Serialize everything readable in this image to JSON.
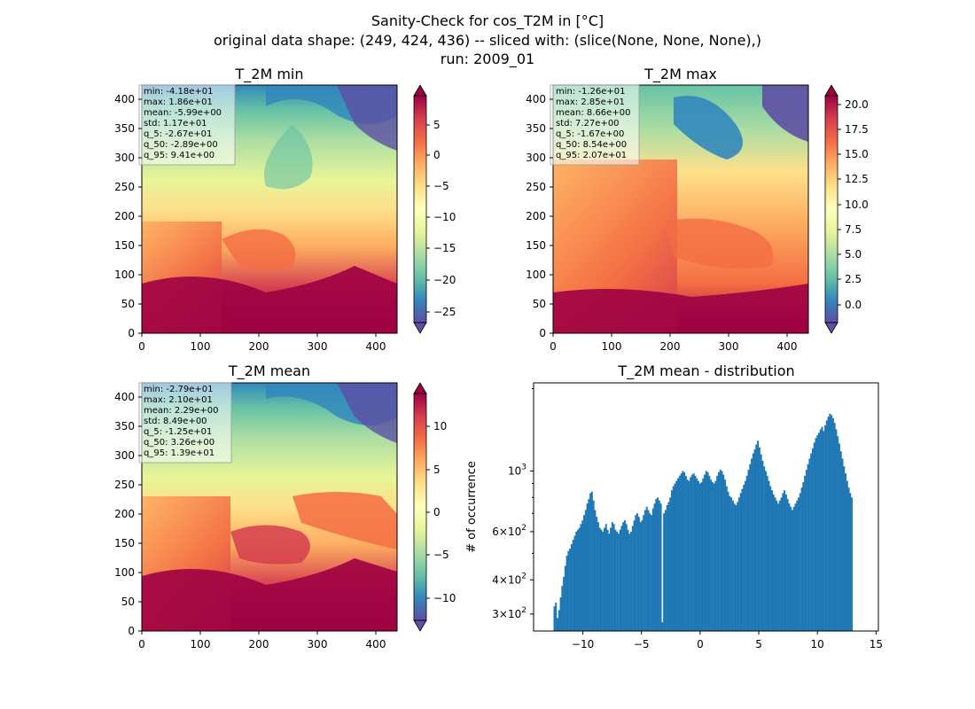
{
  "figure": {
    "title_lines": [
      "Sanity-Check for cos_T2M in [°C]",
      "original data shape: (249, 424, 436) -- sliced with: (slice(None, None, None),)",
      "run: 2009_01"
    ]
  },
  "panels": [
    {
      "title": "T_2M min",
      "xticks": [
        "0",
        "100",
        "200",
        "300",
        "400"
      ],
      "yticks": [
        "0",
        "50",
        "100",
        "150",
        "200",
        "250",
        "300",
        "350",
        "400"
      ],
      "stats": [
        "min: -4.18e+01",
        "max: 1.86e+01",
        "mean: -5.99e+00",
        "std: 1.17e+01",
        "q_5: -2.67e+01",
        "q_50: -2.89e+00",
        "q_95: 9.41e+00"
      ],
      "colorbar": {
        "colormap": "Spectral_r",
        "range": [
          -27.5,
          9.4
        ],
        "ticks": [
          "5",
          "0",
          "−5",
          "−10",
          "−15",
          "−20",
          "−25"
        ],
        "extend": "both"
      }
    },
    {
      "title": "T_2M max",
      "xticks": [
        "0",
        "100",
        "200",
        "300",
        "400"
      ],
      "yticks": [
        "0",
        "50",
        "100",
        "150",
        "200",
        "250",
        "300",
        "350",
        "400"
      ],
      "stats": [
        "min: -1.26e+01",
        "max: 2.85e+01",
        "mean: 8.66e+00",
        "std: 7.27e+00",
        "q_5: -1.67e+00",
        "q_50: 8.54e+00",
        "q_95: 2.07e+01"
      ],
      "colorbar": {
        "colormap": "Spectral_r",
        "range": [
          -1.7,
          20.7
        ],
        "ticks": [
          "20.0",
          "17.5",
          "15.0",
          "12.5",
          "10.0",
          "7.5",
          "5.0",
          "2.5",
          "0.0"
        ],
        "extend": "both"
      }
    },
    {
      "title": "T_2M mean",
      "xticks": [
        "0",
        "100",
        "200",
        "300",
        "400"
      ],
      "yticks": [
        "0",
        "50",
        "100",
        "150",
        "200",
        "250",
        "300",
        "350",
        "400"
      ],
      "stats": [
        "min: -2.79e+01",
        "max: 2.10e+01",
        "mean: 2.29e+00",
        "std: 8.49e+00",
        "q_5: -1.25e+01",
        "q_50: 3.26e+00",
        "q_95: 1.39e+01"
      ],
      "colorbar": {
        "colormap": "Spectral_r",
        "range": [
          -12.5,
          13.9
        ],
        "ticks": [
          "10",
          "5",
          "0",
          "−5",
          "−10"
        ],
        "extend": "both"
      }
    }
  ],
  "colors": {
    "bar": "#1f77b4",
    "cmap": [
      "#5e4fa2",
      "#3288bd",
      "#66c2a5",
      "#abdda4",
      "#e6f598",
      "#ffffbf",
      "#fee08b",
      "#fdae61",
      "#f46d43",
      "#d53e4f",
      "#9e0142"
    ]
  },
  "chart_data": {
    "type": "bar",
    "title": "T_2M mean - distribution",
    "ylabel": "# of occurrence",
    "xlabel": "",
    "yscale": "log",
    "xlim": [
      -14.2,
      15.2
    ],
    "ylim": [
      260,
      2100
    ],
    "xticks": [
      "−10",
      "−5",
      "0",
      "5",
      "10",
      "15"
    ],
    "xtick_values": [
      -10,
      -5,
      0,
      5,
      10,
      15
    ],
    "yticks": [
      {
        "value": 300,
        "base": "3",
        "exp": "2"
      },
      {
        "value": 400,
        "base": "4",
        "exp": "2"
      },
      {
        "value": 600,
        "base": "6",
        "exp": "2"
      },
      {
        "value": 1000,
        "base": "10",
        "exp": "3"
      }
    ],
    "bins": {
      "start": -12.5,
      "step": 0.1335
    },
    "values": [
      320,
      330,
      290,
      310,
      345,
      380,
      410,
      450,
      490,
      510,
      520,
      540,
      560,
      580,
      600,
      610,
      620,
      640,
      660,
      690,
      720,
      760,
      790,
      830,
      840,
      780,
      720,
      680,
      650,
      620,
      610,
      600,
      620,
      640,
      610,
      590,
      620,
      650,
      640,
      610,
      600,
      590,
      610,
      630,
      650,
      660,
      640,
      610,
      590,
      600,
      630,
      660,
      690,
      700,
      680,
      650,
      660,
      690,
      720,
      740,
      720,
      700,
      690,
      730,
      760,
      790,
      800,
      780,
      760,
      280,
      700,
      720,
      750,
      770,
      800,
      850,
      880,
      900,
      920,
      940,
      960,
      980,
      1000,
      990,
      960,
      930,
      920,
      950,
      970,
      980,
      960,
      940,
      920,
      900,
      910,
      940,
      970,
      1000,
      990,
      960,
      930,
      910,
      900,
      920,
      960,
      990,
      1010,
      1000,
      970,
      930,
      880,
      840,
      810,
      800,
      780,
      760,
      750,
      770,
      800,
      830,
      860,
      890,
      920,
      960,
      1010,
      1060,
      1110,
      1160,
      1200,
      1250,
      1290,
      1220,
      1150,
      1090,
      1040,
      1000,
      960,
      920,
      880,
      850,
      820,
      800,
      780,
      760,
      780,
      800,
      830,
      850,
      820,
      790,
      760,
      740,
      720,
      740,
      760,
      780,
      800,
      830,
      870,
      910,
      960,
      1010,
      1060,
      1110,
      1160,
      1210,
      1270,
      1320,
      1350,
      1380,
      1420,
      1450,
      1400,
      1470,
      1530,
      1580,
      1620,
      1600,
      1560,
      1500,
      1420,
      1340,
      1260,
      1180,
      1110,
      1040,
      980,
      920,
      870,
      830,
      800
    ]
  }
}
